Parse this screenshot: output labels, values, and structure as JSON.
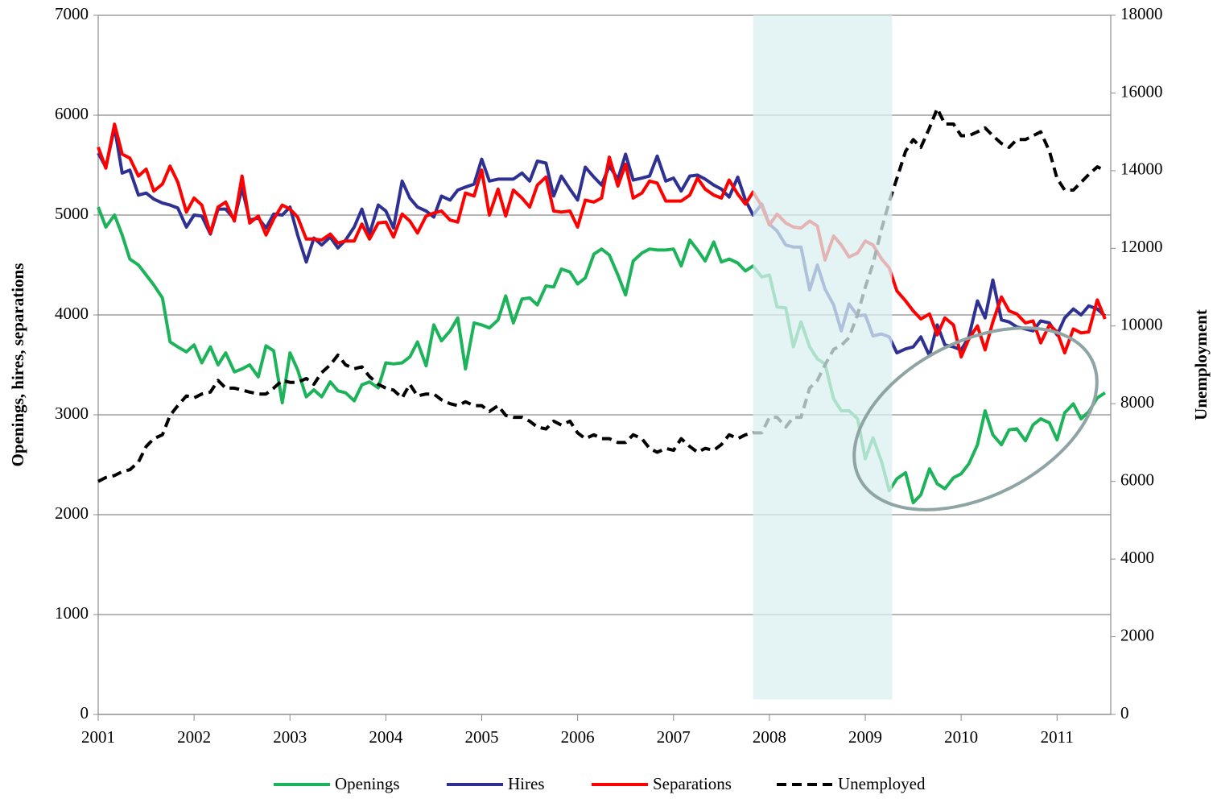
{
  "chart_data": {
    "type": "line",
    "x": [
      2001,
      2001.08,
      2001.17,
      2001.25,
      2001.33,
      2001.42,
      2001.5,
      2001.58,
      2001.67,
      2001.75,
      2001.83,
      2001.92,
      2002,
      2002.08,
      2002.17,
      2002.25,
      2002.33,
      2002.42,
      2002.5,
      2002.58,
      2002.67,
      2002.75,
      2002.83,
      2002.92,
      2003,
      2003.08,
      2003.17,
      2003.25,
      2003.33,
      2003.42,
      2003.5,
      2003.58,
      2003.67,
      2003.75,
      2003.83,
      2003.92,
      2004,
      2004.08,
      2004.17,
      2004.25,
      2004.33,
      2004.42,
      2004.5,
      2004.58,
      2004.67,
      2004.75,
      2004.83,
      2004.92,
      2005,
      2005.08,
      2005.17,
      2005.25,
      2005.33,
      2005.42,
      2005.5,
      2005.58,
      2005.67,
      2005.75,
      2005.83,
      2005.92,
      2006,
      2006.08,
      2006.17,
      2006.25,
      2006.33,
      2006.42,
      2006.5,
      2006.58,
      2006.67,
      2006.75,
      2006.83,
      2006.92,
      2007,
      2007.08,
      2007.17,
      2007.25,
      2007.33,
      2007.42,
      2007.5,
      2007.58,
      2007.67,
      2007.75,
      2007.83,
      2007.92,
      2008,
      2008.08,
      2008.17,
      2008.25,
      2008.33,
      2008.42,
      2008.5,
      2008.58,
      2008.67,
      2008.75,
      2008.83,
      2008.92,
      2009,
      2009.08,
      2009.17,
      2009.25,
      2009.33,
      2009.42,
      2009.5,
      2009.58,
      2009.67,
      2009.75,
      2009.83,
      2009.92,
      2010,
      2010.08,
      2010.17,
      2010.25,
      2010.33,
      2010.42,
      2010.5,
      2010.58,
      2010.67,
      2010.75,
      2010.83,
      2010.92,
      2011,
      2011.08,
      2011.17,
      2011.25,
      2011.33,
      2011.42,
      2011.5
    ],
    "series": [
      {
        "name": "Openings",
        "color": "#1db35a",
        "values": [
          5080,
          4880,
          5000,
          4800,
          4560,
          4500,
          4400,
          4300,
          4170,
          3730,
          3680,
          3630,
          3700,
          3520,
          3680,
          3500,
          3620,
          3430,
          3460,
          3500,
          3380,
          3690,
          3640,
          3120,
          3620,
          3450,
          3180,
          3250,
          3180,
          3330,
          3240,
          3220,
          3140,
          3300,
          3330,
          3270,
          3520,
          3510,
          3520,
          3580,
          3730,
          3490,
          3900,
          3740,
          3840,
          3970,
          3460,
          3920,
          3900,
          3870,
          3950,
          4190,
          3920,
          4160,
          4170,
          4100,
          4290,
          4280,
          4460,
          4430,
          4310,
          4370,
          4610,
          4660,
          4600,
          4400,
          4200,
          4540,
          4620,
          4660,
          4650,
          4650,
          4660,
          4490,
          4750,
          4650,
          4540,
          4730,
          4530,
          4560,
          4520,
          4440,
          4490,
          4380,
          4400,
          4080,
          4070,
          3680,
          3930,
          3680,
          3560,
          3510,
          3160,
          3040,
          3040,
          2960,
          2560,
          2770,
          2530,
          2240,
          2360,
          2420,
          2120,
          2200,
          2460,
          2310,
          2260,
          2370,
          2410,
          2510,
          2700,
          3040,
          2800,
          2700,
          2850,
          2860,
          2740,
          2900,
          2960,
          2920,
          2750,
          3020,
          3110,
          2960,
          3030,
          3170,
          3220
        ]
      },
      {
        "name": "Hires",
        "color": "#2e3192",
        "values": [
          5620,
          5480,
          5880,
          5420,
          5450,
          5200,
          5220,
          5160,
          5120,
          5100,
          5070,
          4880,
          5000,
          4990,
          4810,
          5060,
          5060,
          4960,
          5270,
          4950,
          4970,
          4870,
          5010,
          5000,
          5080,
          4800,
          4530,
          4770,
          4700,
          4780,
          4670,
          4750,
          4880,
          5060,
          4810,
          5100,
          5040,
          4870,
          5340,
          5170,
          5080,
          5040,
          4980,
          5190,
          5150,
          5250,
          5280,
          5310,
          5560,
          5340,
          5360,
          5360,
          5360,
          5420,
          5340,
          5540,
          5520,
          5190,
          5390,
          5260,
          5150,
          5480,
          5380,
          5300,
          5490,
          5360,
          5610,
          5350,
          5370,
          5390,
          5590,
          5340,
          5370,
          5240,
          5390,
          5400,
          5360,
          5300,
          5260,
          5180,
          5380,
          5150,
          5000,
          5110,
          4910,
          4840,
          4700,
          4680,
          4680,
          4250,
          4500,
          4260,
          4100,
          3840,
          4110,
          3990,
          4000,
          3790,
          3810,
          3780,
          3620,
          3660,
          3680,
          3780,
          3590,
          3900,
          3700,
          3680,
          3650,
          3780,
          4140,
          3970,
          4350,
          3950,
          3930,
          3880,
          3860,
          3840,
          3940,
          3920,
          3800,
          3970,
          4060,
          4000,
          4090,
          4060,
          3990
        ]
      },
      {
        "name": "Separations",
        "color": "#ff0000",
        "values": [
          5680,
          5470,
          5910,
          5610,
          5570,
          5390,
          5460,
          5240,
          5310,
          5490,
          5330,
          5030,
          5170,
          5100,
          4820,
          5080,
          5130,
          4940,
          5390,
          4920,
          4990,
          4800,
          4960,
          5100,
          5060,
          4980,
          4760,
          4760,
          4750,
          4810,
          4720,
          4740,
          4740,
          4910,
          4760,
          4920,
          4930,
          4780,
          5010,
          4940,
          4820,
          4990,
          5020,
          5040,
          4950,
          4930,
          5220,
          5190,
          5450,
          5000,
          5260,
          4990,
          5250,
          5170,
          5080,
          5300,
          5380,
          5040,
          5030,
          5040,
          4880,
          5150,
          5130,
          5170,
          5580,
          5290,
          5510,
          5170,
          5220,
          5340,
          5320,
          5140,
          5140,
          5140,
          5200,
          5370,
          5260,
          5200,
          5170,
          5350,
          5210,
          5110,
          5230,
          5090,
          4900,
          5010,
          4920,
          4880,
          4870,
          4940,
          4890,
          4550,
          4790,
          4700,
          4580,
          4620,
          4740,
          4700,
          4560,
          4470,
          4240,
          4140,
          4040,
          3960,
          4010,
          3800,
          3970,
          3900,
          3580,
          3760,
          3890,
          3650,
          3930,
          4180,
          4040,
          4010,
          3920,
          3940,
          3720,
          3900,
          3830,
          3620,
          3860,
          3820,
          3830,
          4150,
          3960
        ]
      },
      {
        "name": "Unemployed",
        "color": "#000000",
        "axis": "y2",
        "line_style": "dashed",
        "values": [
          6000,
          6100,
          6150,
          6250,
          6300,
          6500,
          6900,
          7100,
          7200,
          7700,
          7950,
          8200,
          8150,
          8250,
          8300,
          8600,
          8400,
          8400,
          8350,
          8300,
          8250,
          8250,
          8400,
          8600,
          8550,
          8550,
          8650,
          8500,
          8800,
          9000,
          9250,
          9000,
          8900,
          8950,
          8700,
          8500,
          8400,
          8350,
          8150,
          8500,
          8200,
          8250,
          8250,
          8100,
          8000,
          7950,
          8050,
          7950,
          7950,
          7800,
          7950,
          7700,
          7650,
          7650,
          7550,
          7400,
          7350,
          7550,
          7450,
          7550,
          7250,
          7100,
          7200,
          7100,
          7100,
          7000,
          7000,
          7200,
          7100,
          6850,
          6750,
          6850,
          6800,
          7100,
          6900,
          6750,
          6850,
          6800,
          6950,
          7200,
          7100,
          7200,
          7250,
          7250,
          7650,
          7650,
          7400,
          7650,
          7650,
          8400,
          8600,
          9000,
          9400,
          9500,
          9700,
          10300,
          11000,
          11600,
          12500,
          13200,
          13800,
          14500,
          14800,
          14600,
          15100,
          15600,
          15200,
          15200,
          14900,
          14900,
          15000,
          15100,
          14900,
          14700,
          14600,
          14800,
          14800,
          14900,
          15000,
          14500,
          13800,
          13500,
          13500,
          13700,
          13900,
          14100,
          14000
        ]
      }
    ],
    "xlim": [
      2001,
      2011.56
    ],
    "xticks": [
      2001,
      2002,
      2003,
      2004,
      2005,
      2006,
      2007,
      2008,
      2009,
      2010,
      2011
    ],
    "ylim": [
      0,
      7000
    ],
    "yticks": [
      0,
      1000,
      2000,
      3000,
      4000,
      5000,
      6000,
      7000
    ],
    "y2lim": [
      0,
      18000
    ],
    "y2ticks": [
      0,
      2000,
      4000,
      6000,
      8000,
      10000,
      12000,
      14000,
      16000,
      18000
    ],
    "ylabel": "Openings, hires, separations",
    "y2label": "Unemployment",
    "shaded_region": {
      "x": [
        2007.83,
        2009.28
      ],
      "y": [
        150,
        7000
      ],
      "color": "#dbf0f2"
    },
    "grid": true,
    "legend": "bottom"
  }
}
